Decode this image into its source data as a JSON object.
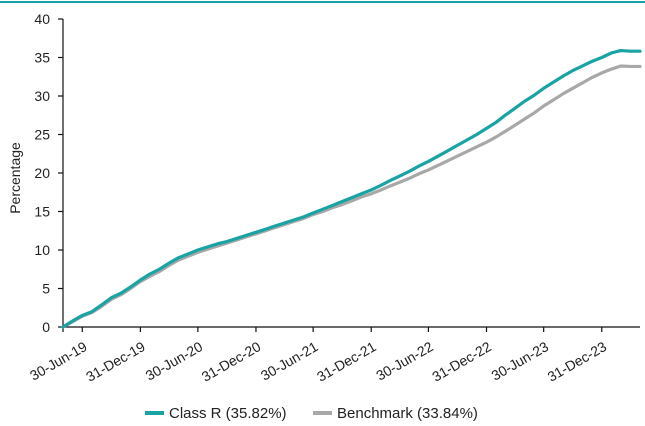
{
  "colors": {
    "top_rule": "#19a3a3",
    "class_r": "#19a3a3",
    "benchmark": "#a8a8a8",
    "axis": "#111111"
  },
  "chart_data": {
    "type": "line",
    "title": "",
    "xlabel": "",
    "ylabel": "Percentage",
    "ylim": [
      0,
      40
    ],
    "yticks": [
      0,
      5,
      10,
      15,
      20,
      25,
      30,
      35,
      40
    ],
    "yticks_labels": [
      "0",
      "5",
      "10",
      "15",
      "20",
      "25",
      "30",
      "35",
      "40"
    ],
    "xlim": [
      "2019-04-30",
      "2024-04-30"
    ],
    "xticks": [
      "2019-06-30",
      "2019-12-31",
      "2020-06-30",
      "2020-12-31",
      "2021-06-30",
      "2021-12-31",
      "2022-06-30",
      "2022-12-31",
      "2023-06-30",
      "2023-12-31"
    ],
    "xtick_labels": [
      "30-Jun-19",
      "31-Dec-19",
      "30-Jun-20",
      "31-Dec-20",
      "30-Jun-21",
      "31-Dec-21",
      "30-Jun-22",
      "31-Dec-22",
      "30-Jun-23",
      "31-Dec-23"
    ],
    "grid": false,
    "legend_placement": "bottom-center",
    "x": [
      "2019-04-30",
      "2019-05-31",
      "2019-06-30",
      "2019-07-31",
      "2019-08-31",
      "2019-09-30",
      "2019-10-31",
      "2019-11-30",
      "2019-12-31",
      "2020-01-31",
      "2020-02-29",
      "2020-03-31",
      "2020-04-30",
      "2020-05-31",
      "2020-06-30",
      "2020-07-31",
      "2020-08-31",
      "2020-09-30",
      "2020-10-31",
      "2020-11-30",
      "2020-12-31",
      "2021-01-31",
      "2021-02-28",
      "2021-03-31",
      "2021-04-30",
      "2021-05-31",
      "2021-06-30",
      "2021-07-31",
      "2021-08-31",
      "2021-09-30",
      "2021-10-31",
      "2021-11-30",
      "2021-12-31",
      "2022-01-31",
      "2022-02-28",
      "2022-03-31",
      "2022-04-30",
      "2022-05-31",
      "2022-06-30",
      "2022-07-31",
      "2022-08-31",
      "2022-09-30",
      "2022-10-31",
      "2022-11-30",
      "2022-12-31",
      "2023-01-31",
      "2023-02-28",
      "2023-03-31",
      "2023-04-30",
      "2023-05-31",
      "2023-06-30",
      "2023-07-31",
      "2023-08-31",
      "2023-09-30",
      "2023-10-31",
      "2023-11-30",
      "2023-12-31",
      "2024-01-31",
      "2024-02-29",
      "2024-03-31",
      "2024-04-30"
    ],
    "series": [
      {
        "name": "Class R (35.82%)",
        "color": "#19a3a3",
        "values": [
          0,
          0.8,
          1.5,
          2.0,
          2.9,
          3.8,
          4.4,
          5.2,
          6.1,
          6.9,
          7.5,
          8.3,
          9.0,
          9.5,
          10.0,
          10.4,
          10.8,
          11.1,
          11.5,
          11.9,
          12.3,
          12.7,
          13.1,
          13.5,
          13.9,
          14.3,
          14.8,
          15.3,
          15.8,
          16.3,
          16.8,
          17.3,
          17.8,
          18.4,
          19.0,
          19.6,
          20.2,
          20.9,
          21.5,
          22.2,
          22.9,
          23.6,
          24.3,
          25.0,
          25.8,
          26.6,
          27.5,
          28.4,
          29.3,
          30.1,
          31.0,
          31.8,
          32.6,
          33.3,
          33.9,
          34.5,
          35.0,
          35.6,
          35.9,
          35.82,
          35.82
        ]
      },
      {
        "name": "Benchmark (33.84%)",
        "color": "#a8a8a8",
        "values": [
          0,
          0.7,
          1.4,
          1.9,
          2.7,
          3.6,
          4.2,
          5.0,
          5.9,
          6.6,
          7.2,
          8.0,
          8.7,
          9.2,
          9.7,
          10.1,
          10.5,
          10.9,
          11.3,
          11.7,
          12.1,
          12.5,
          12.9,
          13.3,
          13.7,
          14.1,
          14.6,
          15.0,
          15.5,
          15.9,
          16.4,
          16.9,
          17.3,
          17.8,
          18.3,
          18.8,
          19.3,
          19.9,
          20.4,
          21.0,
          21.6,
          22.2,
          22.8,
          23.4,
          24.0,
          24.7,
          25.4,
          26.2,
          27.0,
          27.8,
          28.7,
          29.5,
          30.3,
          31.0,
          31.7,
          32.4,
          33.0,
          33.5,
          33.9,
          33.84,
          33.84
        ]
      }
    ]
  }
}
